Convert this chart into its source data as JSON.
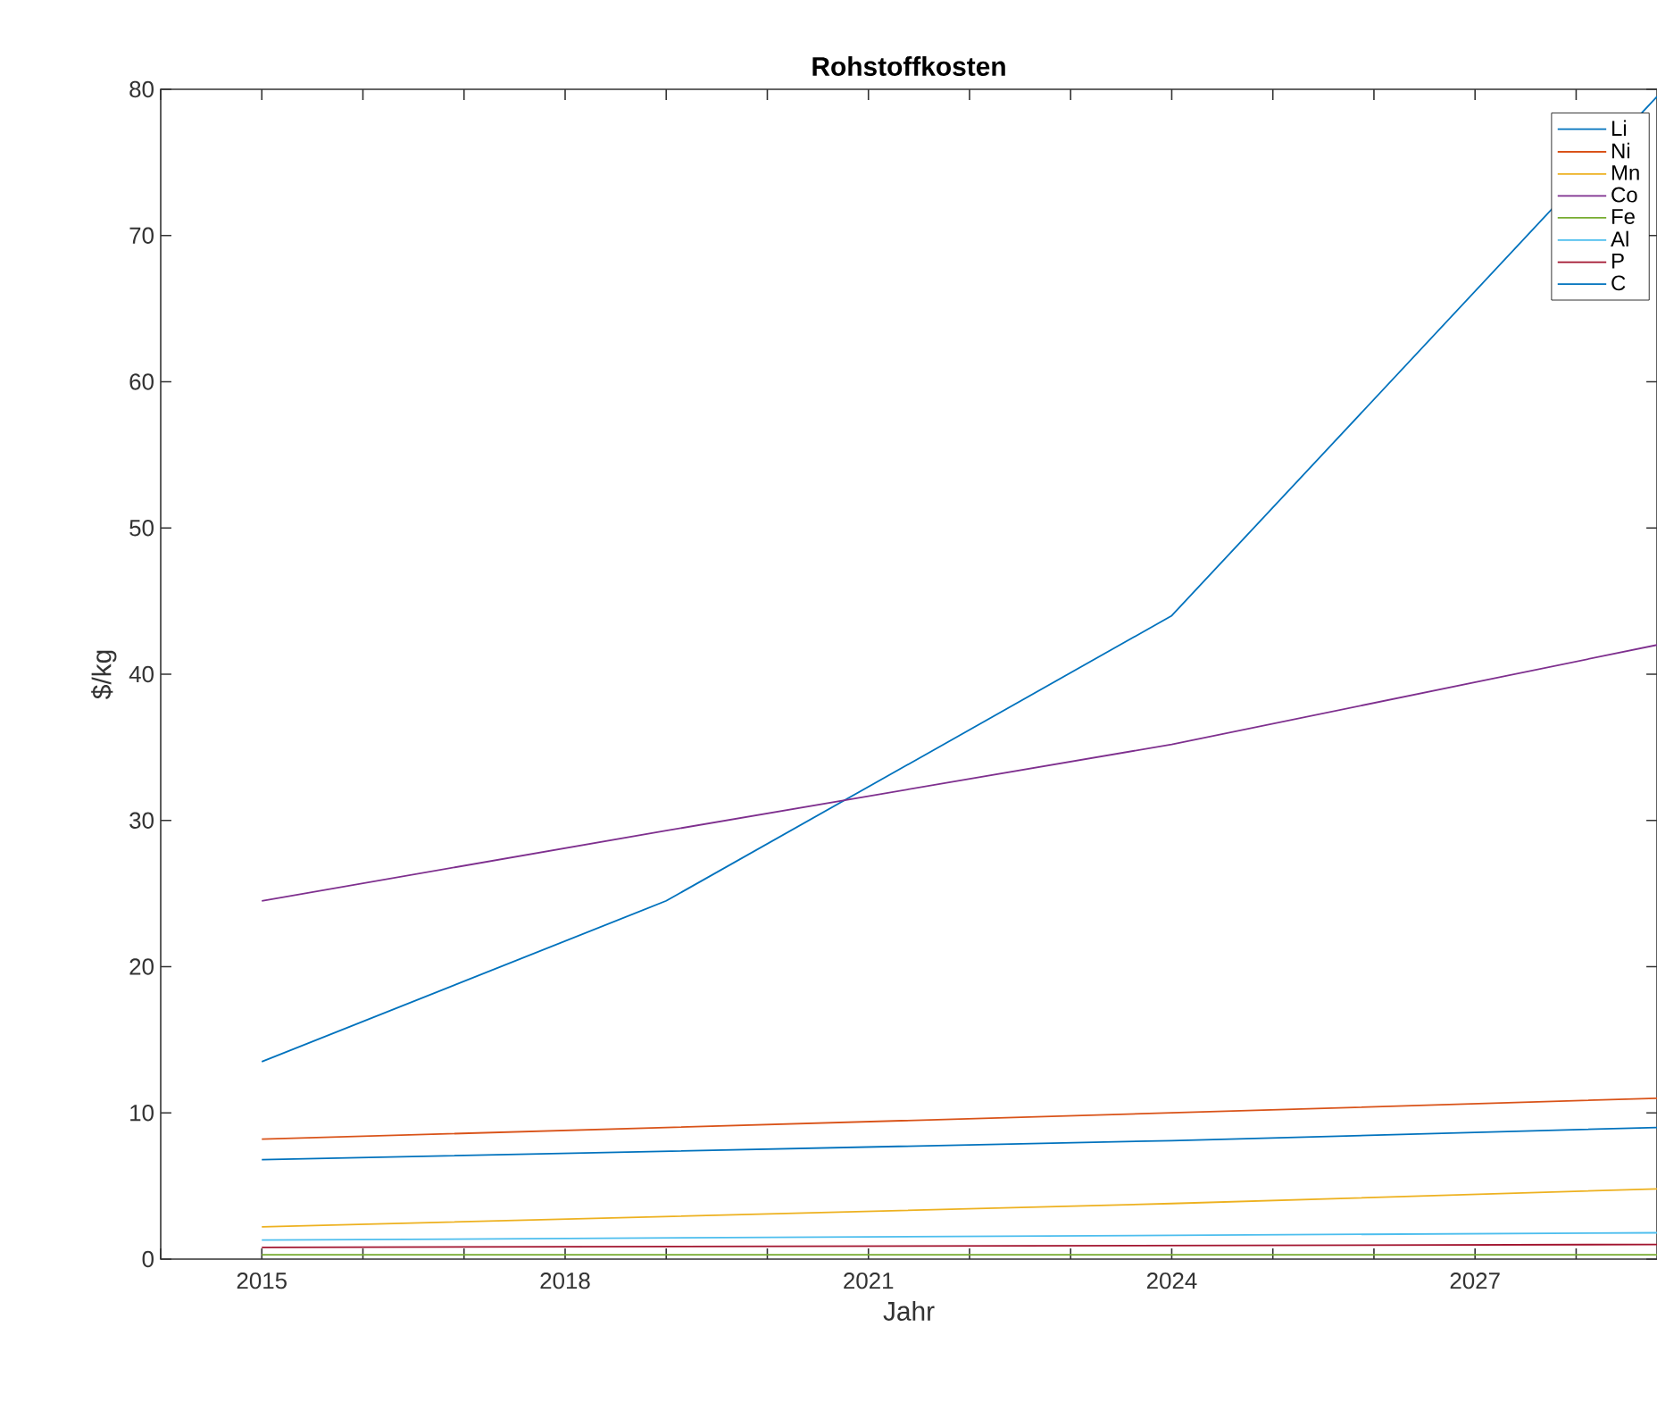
{
  "chart_data": {
    "type": "line",
    "title": "**Rohstoffkosten**",
    "xlabel": "Jahr",
    "ylabel": "$/kg",
    "xlim": [
      2014,
      2028.8
    ],
    "ylim": [
      0,
      80
    ],
    "xticks": [
      2015,
      2018,
      2021,
      2024,
      2027,
      {
        "value": 2014,
        "label": null
      },
      {
        "value": 2016,
        "label": null
      },
      {
        "value": 2017,
        "label": null
      },
      {
        "value": 2019,
        "label": null
      },
      {
        "value": 2020,
        "label": null
      },
      {
        "value": 2022,
        "label": null
      },
      {
        "value": 2023,
        "label": null
      },
      {
        "value": 2025,
        "label": null
      },
      {
        "value": 2026,
        "label": null
      },
      {
        "value": 2028,
        "label": null
      }
    ],
    "yticks": [
      0,
      10,
      20,
      30,
      40,
      50,
      60,
      70,
      80
    ],
    "grid": false,
    "legend": "top right",
    "marker": "none",
    "line_style": "solid",
    "series": [
      {
        "name": "Li",
        "color": "#0072bd",
        "x": [
          2015,
          2019,
          2024,
          2028.8
        ],
        "values": [
          13.5,
          24.5,
          44,
          79.5
        ]
      },
      {
        "name": "Ni",
        "color": "#d95319",
        "x": [
          2015,
          2024,
          2028.8
        ],
        "values": [
          8.2,
          10,
          11
        ]
      },
      {
        "name": "Mn",
        "color": "#edb120",
        "x": [
          2015,
          2024,
          2028.8
        ],
        "values": [
          2.2,
          3.8,
          4.8
        ]
      },
      {
        "name": "Co",
        "color": "#7e2f8e",
        "x": [
          2015,
          2019,
          2024,
          2028.8
        ],
        "values": [
          24.5,
          29.3,
          35.2,
          42
        ]
      },
      {
        "name": "Fe",
        "color": "#77ac30",
        "x": [
          2015,
          2028.8
        ],
        "values": [
          0.3,
          0.3
        ]
      },
      {
        "name": "Al",
        "color": "#4dbeee",
        "x": [
          2015,
          2028.8
        ],
        "values": [
          1.3,
          1.8
        ]
      },
      {
        "name": "P",
        "color": "#a2142f",
        "x": [
          2015,
          2028.8
        ],
        "values": [
          0.8,
          1.0
        ]
      },
      {
        "name": "C",
        "color": "#0072bd",
        "x": [
          2015,
          2024,
          2028.8
        ],
        "values": [
          6.8,
          8.1,
          9
        ]
      }
    ]
  }
}
